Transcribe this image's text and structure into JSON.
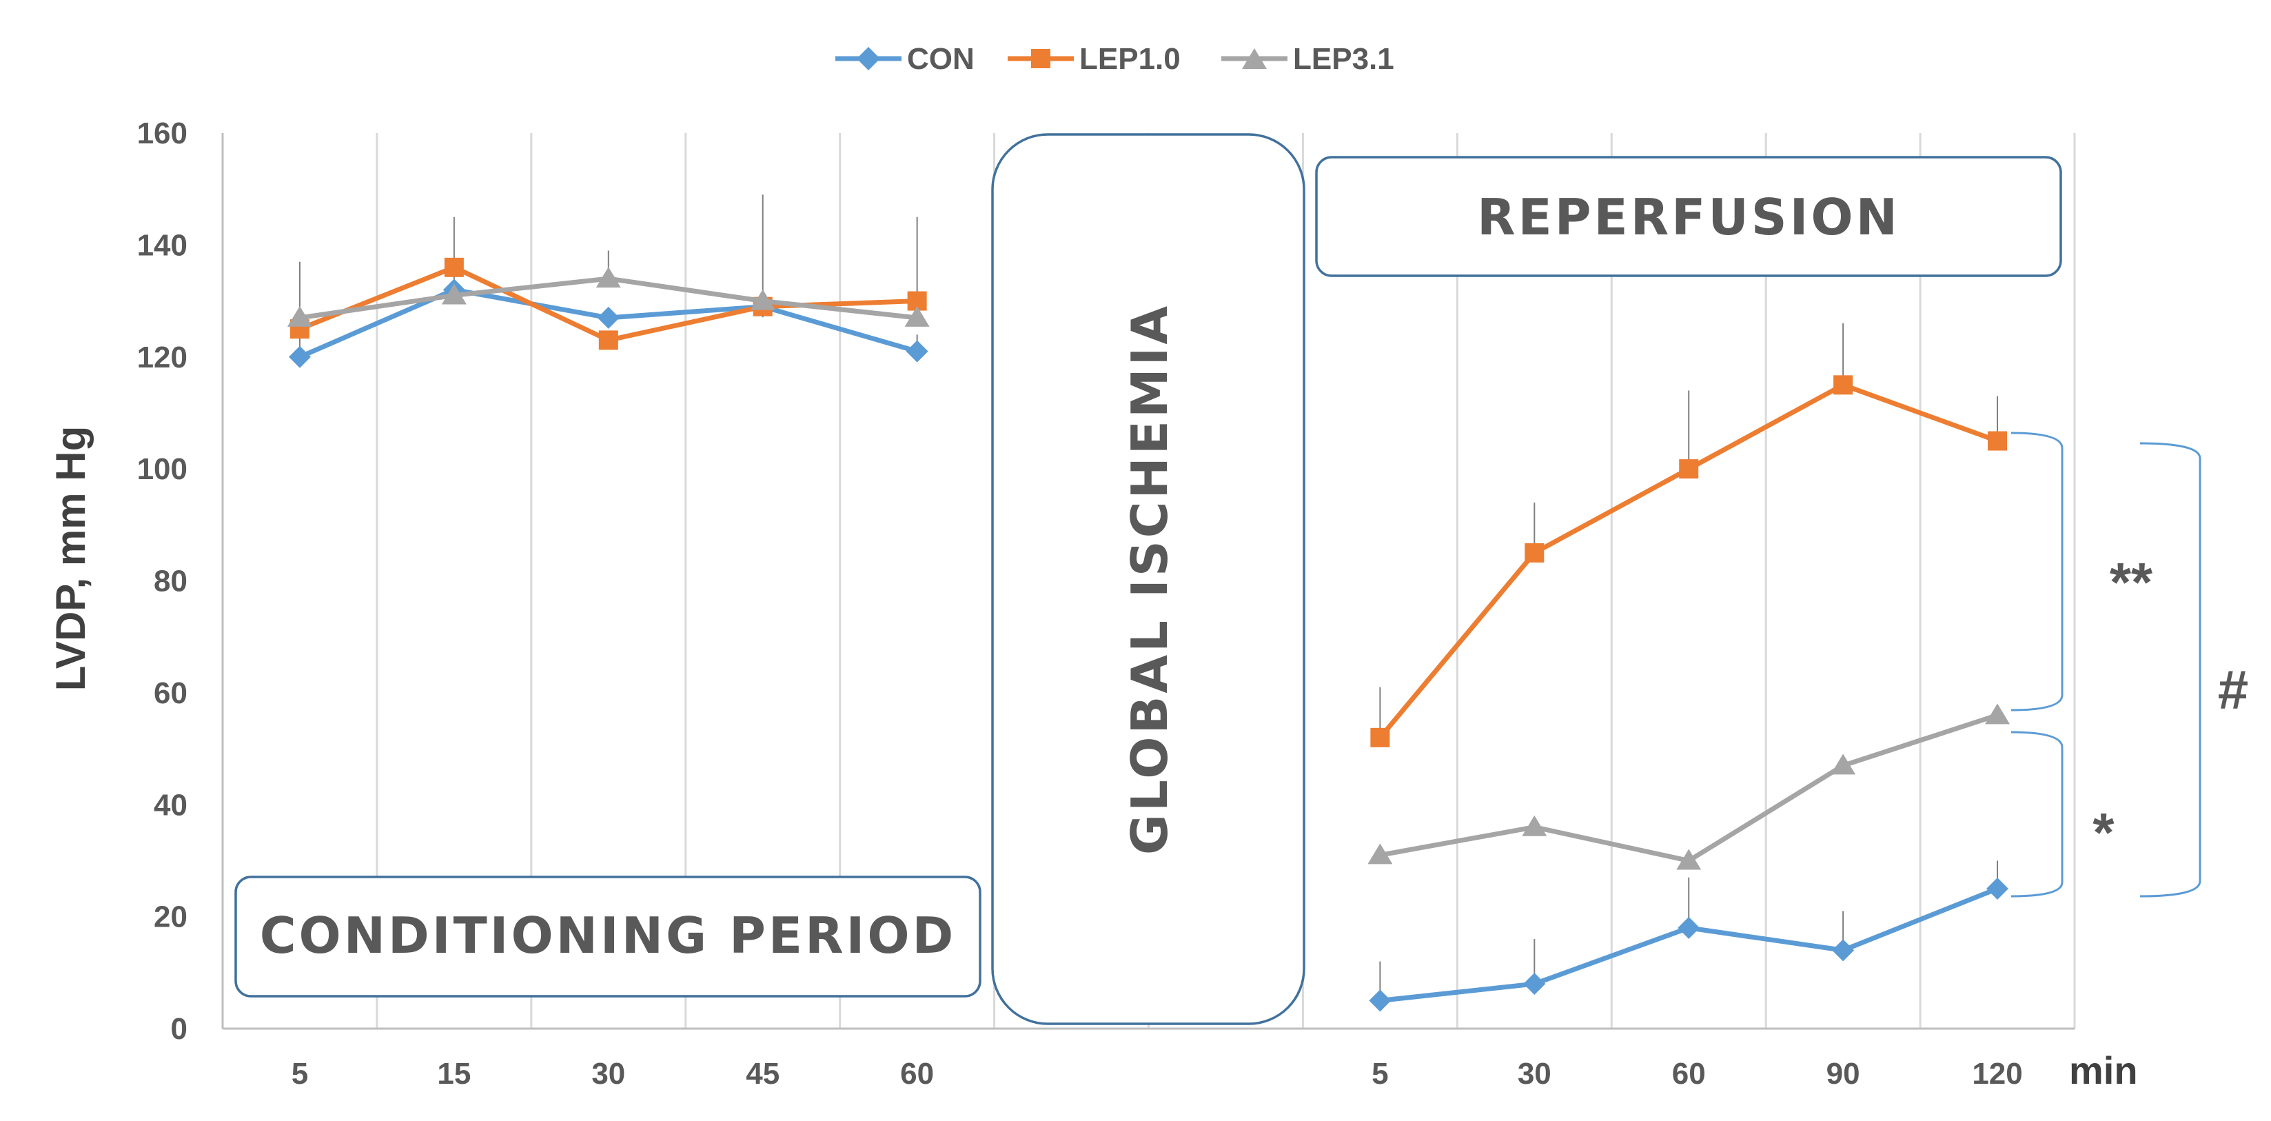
{
  "chart_data": {
    "type": "line",
    "ylabel": "LVDP, mm Hg",
    "xunit": "min",
    "ylim": [
      0,
      160
    ],
    "yticks": [
      0,
      20,
      40,
      60,
      80,
      100,
      120,
      140,
      160
    ],
    "grid": "vertical",
    "legend_position": "top-center",
    "categories": [
      "5",
      "15",
      "30",
      "45",
      "60",
      "",
      "",
      "5",
      "30",
      "60",
      "90",
      "120"
    ],
    "series": [
      {
        "name": "CON",
        "color": "#5b9bd5",
        "marker": "diamond",
        "conditioning": [
          120,
          132,
          127,
          129,
          121
        ],
        "conditioning_err": [
          6,
          0,
          0,
          0,
          3
        ],
        "reperfusion": [
          5,
          8,
          18,
          14,
          25
        ],
        "reperfusion_err": [
          7,
          8,
          9,
          7,
          5
        ]
      },
      {
        "name": "LEP1.0",
        "color": "#ed7d31",
        "marker": "square",
        "conditioning": [
          125,
          136,
          123,
          129,
          130
        ],
        "conditioning_err": [
          0,
          0,
          0,
          0,
          0
        ],
        "reperfusion": [
          52,
          85,
          100,
          115,
          105
        ],
        "reperfusion_err": [
          9,
          9,
          14,
          11,
          8
        ]
      },
      {
        "name": "LEP3.1",
        "color": "#a5a5a5",
        "marker": "triangle",
        "conditioning": [
          127,
          131,
          134,
          130,
          127
        ],
        "conditioning_err": [
          10,
          14,
          5,
          19,
          18
        ],
        "reperfusion": [
          31,
          36,
          30,
          47,
          56
        ],
        "reperfusion_err": [
          0,
          0,
          0,
          0,
          0
        ]
      }
    ],
    "annotations": {
      "conditioning": "CONDITIONING PERIOD",
      "ischemia": "GLOBAL ISCHEMIA",
      "reperfusion": "REPERFUSION",
      "sig_double": "**",
      "sig_single": "*",
      "sig_hash": "#"
    }
  }
}
